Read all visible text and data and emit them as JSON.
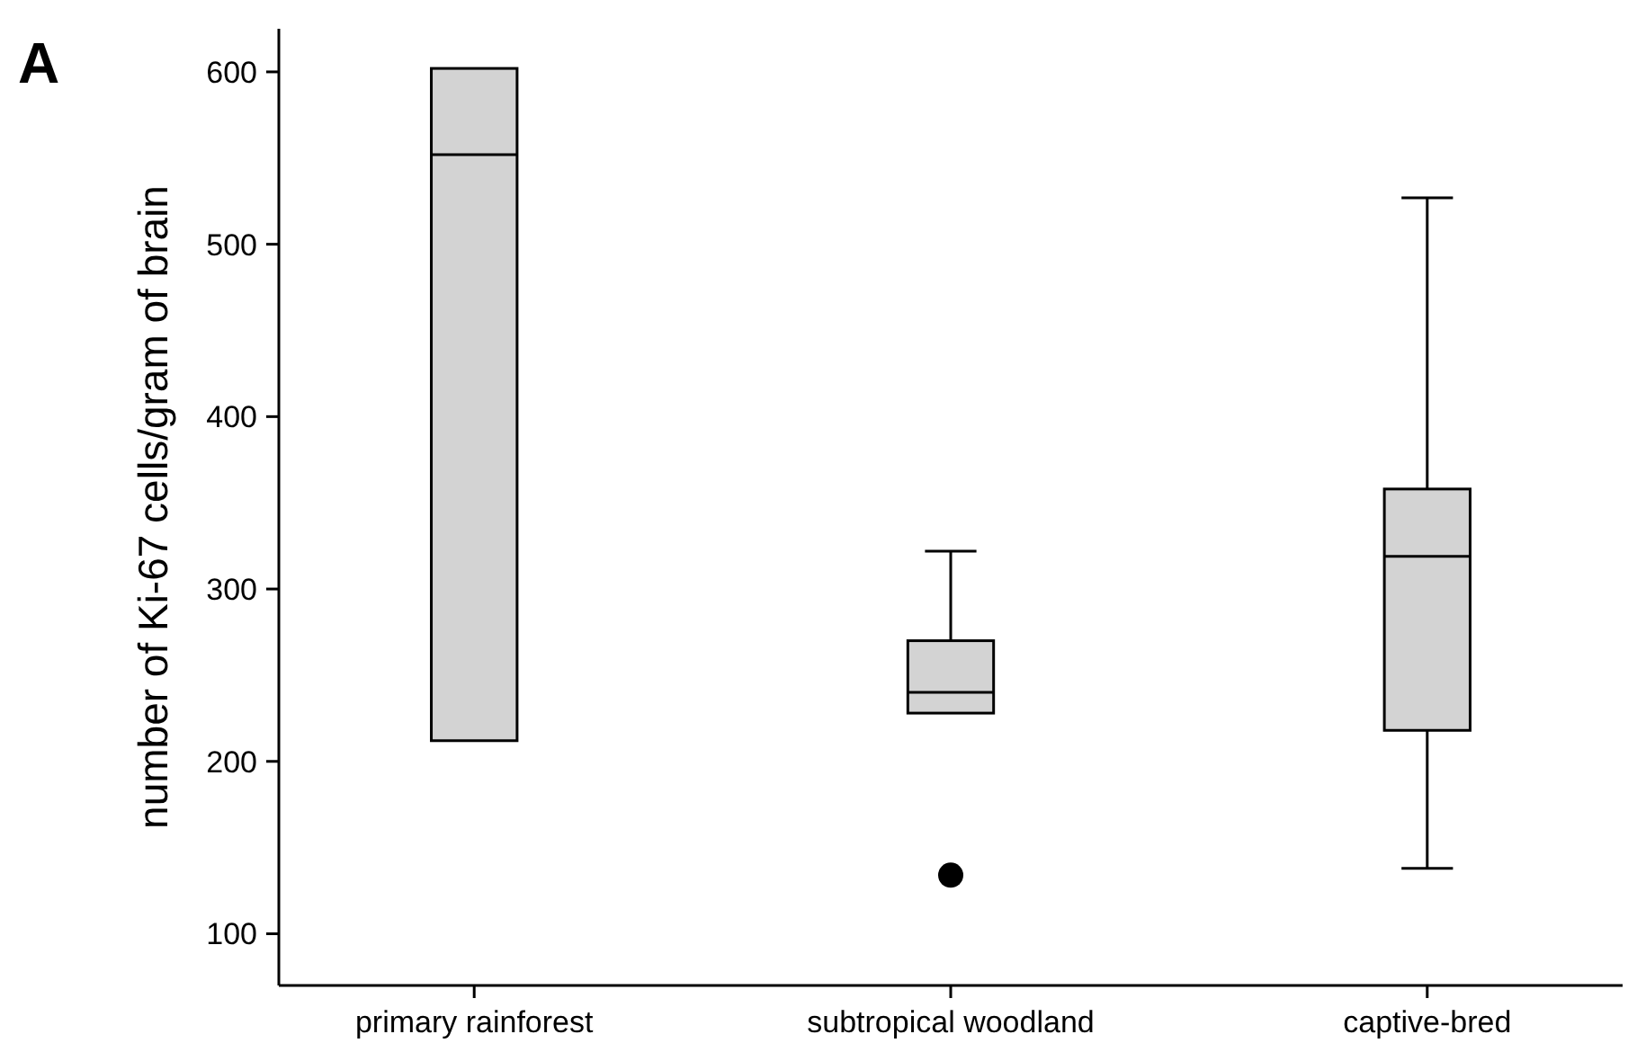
{
  "chart_data": {
    "type": "box",
    "ylabel": "number of Ki-67 cells/gram of brain",
    "annotations": [
      "A"
    ],
    "categories": [
      "primary rainforest",
      "subtropical woodland",
      "captive-bred"
    ],
    "color": "#d3d3d3",
    "ylim": [
      70,
      625
    ],
    "yticks": [
      100,
      200,
      300,
      400,
      500,
      600
    ],
    "grid": false,
    "boxes": [
      {
        "low": 212,
        "q1": 212,
        "median": 552,
        "q3": 602,
        "high": 602
      },
      {
        "low": 228,
        "q1": 228,
        "median": 240,
        "q3": 270,
        "high": 322,
        "outliers": [
          134
        ]
      },
      {
        "low": 138,
        "q1": 218,
        "median": 319,
        "q3": 358,
        "high": 527
      }
    ]
  }
}
